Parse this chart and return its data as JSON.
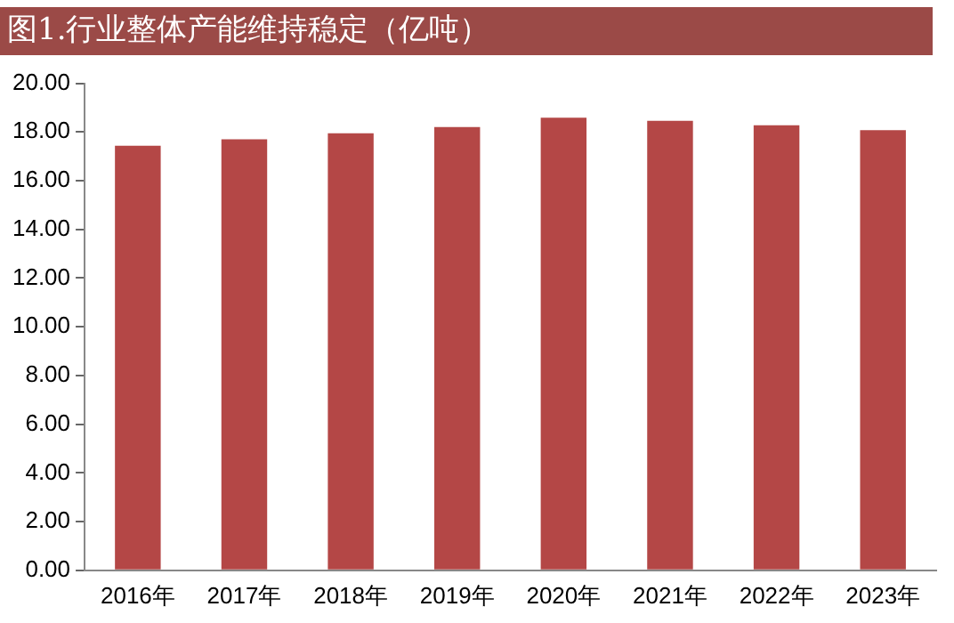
{
  "chart_data": {
    "type": "bar",
    "title": "图1.行业整体产能维持稳定（亿吨）",
    "categories": [
      "2016年",
      "2017年",
      "2018年",
      "2019年",
      "2020年",
      "2021年",
      "2022年",
      "2023年"
    ],
    "values": [
      17.44,
      17.7,
      17.95,
      18.2,
      18.59,
      18.46,
      18.28,
      18.08
    ],
    "color": "#b44746",
    "ylim": [
      0,
      20
    ],
    "yticks": [
      {
        "value": 0,
        "label": "0.00"
      },
      {
        "value": 2,
        "label": "2.00"
      },
      {
        "value": 4,
        "label": "4.00"
      },
      {
        "value": 6,
        "label": "6.00"
      },
      {
        "value": 8,
        "label": "8.00"
      },
      {
        "value": 10,
        "label": "10.00"
      },
      {
        "value": 12,
        "label": "12.00"
      },
      {
        "value": 14,
        "label": "14.00"
      },
      {
        "value": 16,
        "label": "16.00"
      },
      {
        "value": 18,
        "label": "18.00"
      },
      {
        "value": 20,
        "label": "20.00"
      }
    ],
    "grid": false,
    "legend": false
  }
}
